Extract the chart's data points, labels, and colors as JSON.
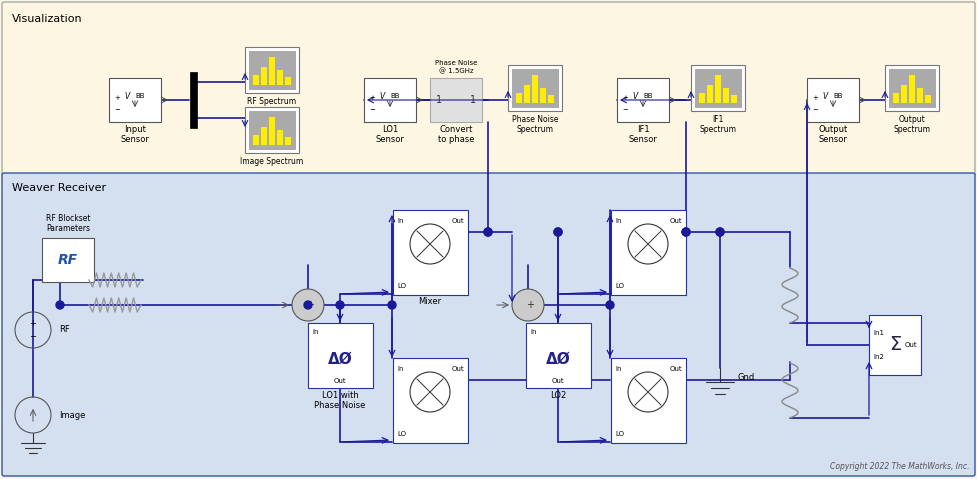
{
  "fig_width": 9.77,
  "fig_height": 4.79,
  "dpi": 100,
  "bg_viz": "#fdf6e3",
  "bg_recv": "#d4dff0",
  "line_color": "#1a1a99",
  "text_color": "#000000",
  "title_viz": "Visualization",
  "title_recv": "Weaver Receiver",
  "copyright": "Copyright 2022 The MathWorks, Inc."
}
